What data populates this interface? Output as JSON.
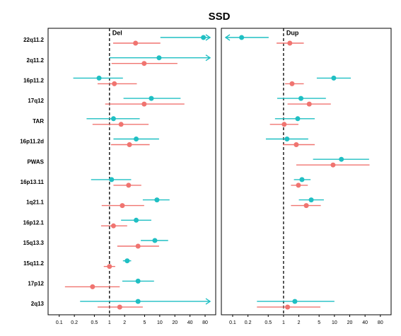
{
  "title": "SSD",
  "chart_data": [
    {
      "type": "forest",
      "label": "Del",
      "xscale": "log",
      "xlim": [
        0.06,
        130
      ],
      "xticks": [
        0.1,
        0.2,
        0.5,
        1,
        2,
        5,
        10,
        20,
        40,
        80
      ],
      "ref": 1,
      "categories": [
        "22q11.2",
        "2q11.2",
        "16p11.2",
        "17q12",
        "TAR",
        "16p11.2d",
        "PWAS",
        "16p13.11",
        "1q21.1",
        "16p12.1",
        "15q13.3",
        "15q11.2",
        "17p12",
        "2q13"
      ],
      "series": [
        {
          "color": "#1fbfc3",
          "values": [
            74,
            9.7,
            0.62,
            6.8,
            1.2,
            3.4,
            null,
            1.1,
            8.8,
            3.4,
            8,
            2.25,
            3.7,
            3.7
          ],
          "lower": [
            10.3,
            1.0,
            0.19,
            1.9,
            0.35,
            1.2,
            null,
            0.43,
            4.6,
            1.7,
            4.2,
            1.85,
            1.8,
            0.26
          ],
          "upper": [
            200,
            200,
            1.85,
            26,
            4.0,
            9.7,
            null,
            2.7,
            15.7,
            6.8,
            14.7,
            2.7,
            7.7,
            200
          ]
        },
        {
          "color": "#f07470",
          "values": [
            3.3,
            4.9,
            1.25,
            4.9,
            1.7,
            2.5,
            null,
            2.4,
            1.8,
            1.2,
            3.7,
            1.0,
            0.46,
            1.6
          ],
          "lower": [
            1.18,
            1.1,
            0.58,
            0.82,
            0.46,
            1.07,
            null,
            1.2,
            0.7,
            0.68,
            1.43,
            0.77,
            0.13,
            0.58
          ],
          "upper": [
            10.3,
            22.5,
            3.5,
            31,
            6,
            6.3,
            null,
            4.3,
            4.9,
            2.25,
            9.7,
            1.3,
            1.6,
            4.6
          ]
        }
      ]
    },
    {
      "type": "forest",
      "label": "Dup",
      "xscale": "log",
      "xlim": [
        0.06,
        130
      ],
      "xticks": [
        0.1,
        0.2,
        0.5,
        1,
        2,
        5,
        10,
        20,
        40,
        80
      ],
      "ref": 1,
      "series": [
        {
          "color": "#1fbfc3",
          "values": [
            0.15,
            null,
            9.7,
            2.2,
            1.9,
            1.17,
            13.7,
            2.3,
            3.5,
            null,
            null,
            null,
            null,
            1.67
          ],
          "lower": [
            0.03,
            null,
            4.5,
            0.75,
            0.68,
            0.45,
            3.8,
            1.6,
            2.0,
            null,
            null,
            null,
            null,
            0.3
          ],
          "upper": [
            0.51,
            null,
            21,
            6.8,
            4.1,
            3.06,
            48,
            3.4,
            6.2,
            null,
            null,
            null,
            null,
            10
          ]
        },
        {
          "color": "#f07470",
          "values": [
            1.33,
            null,
            1.47,
            3.2,
            1.03,
            1.78,
            9.4,
            1.96,
            2.8,
            null,
            null,
            null,
            null,
            1.2
          ],
          "lower": [
            0.73,
            null,
            1.07,
            1.2,
            0.54,
            0.97,
            1.78,
            1.4,
            1.4,
            null,
            null,
            null,
            null,
            0.3
          ],
          "upper": [
            2.5,
            null,
            2.5,
            8.5,
            1.96,
            4.1,
            49,
            3.0,
            5.4,
            null,
            null,
            null,
            null,
            5.3
          ]
        }
      ]
    }
  ]
}
